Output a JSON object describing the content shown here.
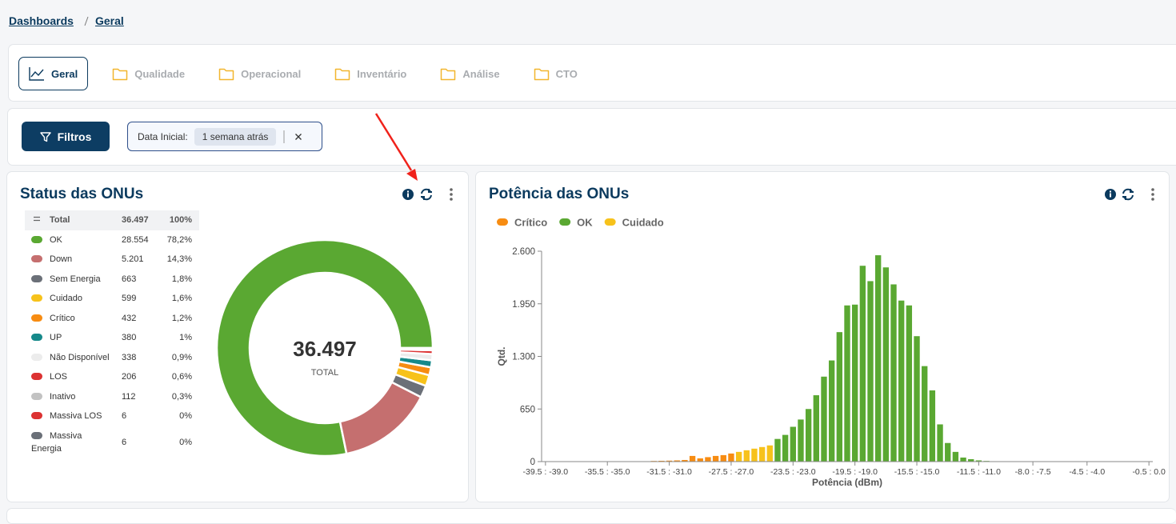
{
  "breadcrumb": [
    "Dashboards",
    "Geral"
  ],
  "tabs": [
    "Geral",
    "Qualidade",
    "Operacional",
    "Inventário",
    "Análise",
    "CTO"
  ],
  "filters": {
    "button": "Filtros",
    "chip_label": "Data Inicial:",
    "chip_value": "1 semana atrás"
  },
  "chart_data": [
    {
      "type": "donut",
      "title": "Status das ONUs",
      "total": {
        "name": "Total",
        "value": 36497,
        "value_label": "36.497",
        "percent_label": "100%"
      },
      "center_label": "TOTAL",
      "categories": [
        "OK",
        "Down",
        "Sem Energia",
        "Cuidado",
        "Crítico",
        "UP",
        "Não Disponível",
        "LOS",
        "Inativo",
        "Massiva LOS",
        "Massiva Energia"
      ],
      "values": [
        28554,
        5201,
        663,
        599,
        432,
        380,
        338,
        206,
        112,
        6,
        6
      ],
      "value_labels": [
        "28.554",
        "5.201",
        "663",
        "599",
        "432",
        "380",
        "338",
        "206",
        "112",
        "6",
        "6"
      ],
      "percent_labels": [
        "78,2%",
        "14,3%",
        "1,8%",
        "1,6%",
        "1,2%",
        "1%",
        "0,9%",
        "0,6%",
        "0,3%",
        "0%",
        "0%"
      ],
      "colors": [
        "#5aa832",
        "#c56f6f",
        "#6b7078",
        "#f7c21b",
        "#f78c12",
        "#16898a",
        "#ececec",
        "#dc3232",
        "#c2c2c2",
        "#dc3232",
        "#6b7078"
      ]
    },
    {
      "type": "bar",
      "title": "Potência das ONUs",
      "x_label": "Potência (dBm)",
      "y_label": "Qtd.",
      "legend": "top-left",
      "grid": false,
      "ylim": [
        0,
        2600
      ],
      "yticks": [
        0,
        650,
        {
          "value": 1300,
          "label": "1.300"
        },
        {
          "value": 1950,
          "label": "1.950"
        },
        {
          "value": 2600,
          "label": "2.600"
        }
      ],
      "categories": [
        "-39.5 : -39.0",
        null,
        null,
        null,
        null,
        null,
        null,
        null,
        "-35.5 : -35.0",
        null,
        null,
        null,
        null,
        null,
        null,
        null,
        "-31.5 : -31.0",
        null,
        null,
        null,
        null,
        null,
        null,
        null,
        "-27.5 : -27.0",
        null,
        null,
        null,
        null,
        null,
        null,
        null,
        "-23.5 : -23.0",
        null,
        null,
        null,
        null,
        null,
        null,
        null,
        "-19.5 : -19.0",
        null,
        null,
        null,
        null,
        null,
        null,
        null,
        "-15.5 : -15.0",
        null,
        null,
        null,
        null,
        null,
        null,
        null,
        "-11.5 : -11.0",
        null,
        null,
        null,
        null,
        null,
        null,
        "-8.0 : -7.5",
        null,
        null,
        null,
        null,
        null,
        null,
        "-4.5 : -4.0",
        null,
        null,
        null,
        null,
        null,
        null,
        null,
        "-0.5 : 0.0"
      ],
      "series": [
        {
          "name": "Crítico",
          "color": "#f78c12",
          "values": [
            null,
            null,
            null,
            null,
            null,
            null,
            null,
            null,
            null,
            null,
            null,
            null,
            3,
            5,
            8,
            10,
            12,
            15,
            20,
            70,
            40,
            55,
            70,
            80,
            100,
            null,
            null,
            null,
            null,
            null,
            null,
            null,
            null,
            null,
            null,
            null,
            null,
            null,
            null,
            null,
            null,
            null,
            null,
            null,
            null,
            null,
            null,
            null,
            null,
            null,
            null,
            null,
            null,
            null,
            null,
            null,
            null,
            null,
            null,
            null,
            null,
            null,
            null,
            null,
            null,
            null,
            null,
            null,
            null,
            null,
            null,
            null,
            null,
            null,
            null,
            null,
            null,
            null,
            null
          ]
        },
        {
          "name": "OK",
          "color": "#5aa832",
          "values": [
            null,
            null,
            null,
            null,
            null,
            null,
            null,
            null,
            null,
            null,
            null,
            null,
            null,
            null,
            null,
            null,
            null,
            null,
            null,
            null,
            null,
            null,
            null,
            null,
            null,
            null,
            null,
            null,
            null,
            null,
            280,
            330,
            430,
            520,
            650,
            820,
            1050,
            1250,
            1600,
            1930,
            1940,
            2420,
            2230,
            2550,
            2400,
            2190,
            1990,
            1930,
            1550,
            1180,
            880,
            460,
            230,
            120,
            50,
            30,
            15,
            8,
            null,
            null,
            null,
            null,
            null,
            null,
            null,
            null,
            null,
            null,
            null,
            null,
            null,
            null,
            null,
            null,
            null,
            null,
            null,
            null,
            null
          ]
        },
        {
          "name": "Cuidado",
          "color": "#f7c21b",
          "values": [
            null,
            null,
            null,
            null,
            null,
            null,
            null,
            null,
            null,
            null,
            null,
            null,
            null,
            null,
            null,
            null,
            null,
            null,
            null,
            null,
            null,
            null,
            null,
            null,
            null,
            120,
            140,
            160,
            180,
            200,
            null,
            null,
            null,
            null,
            null,
            null,
            null,
            null,
            null,
            null,
            null,
            null,
            null,
            null,
            null,
            null,
            null,
            null,
            null,
            null,
            null,
            null,
            null,
            null,
            null,
            null,
            null,
            null,
            null,
            null,
            null,
            null,
            null,
            null,
            null,
            null,
            null,
            null,
            null,
            null,
            null,
            null,
            null,
            null,
            null,
            null,
            null,
            null,
            null
          ]
        }
      ]
    }
  ]
}
